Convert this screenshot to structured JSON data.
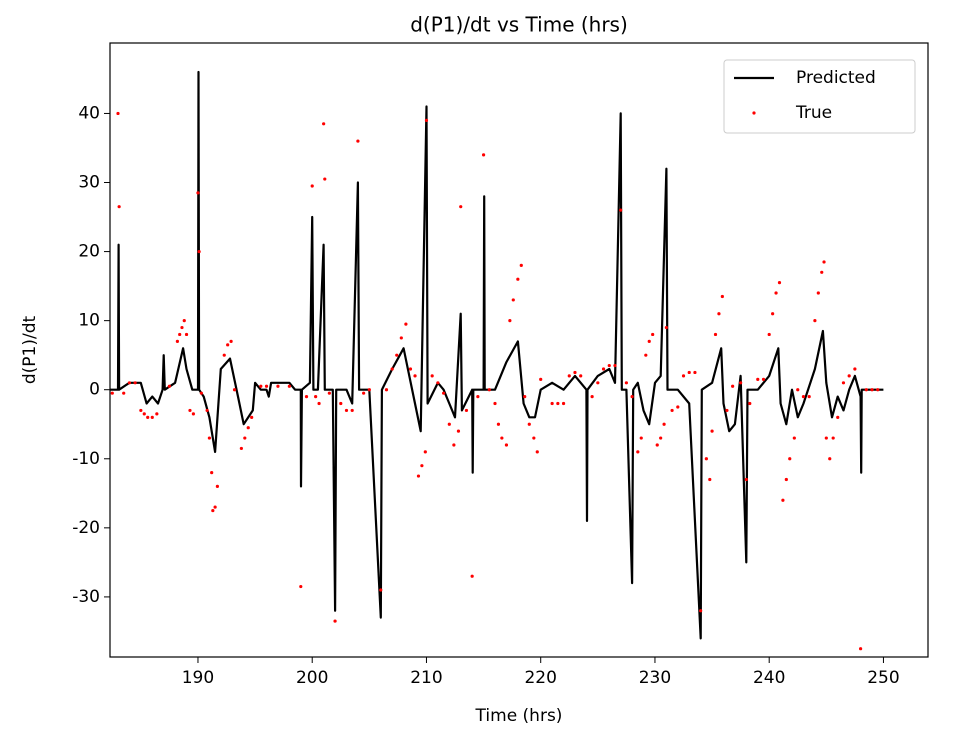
{
  "chart_data": {
    "type": "line_scatter",
    "title": "d(P1)/dt vs Time (hrs)",
    "xlabel": "Time (hrs)",
    "ylabel": "d(P1)/dt",
    "xlim": [
      182.3,
      253.9
    ],
    "ylim": [
      -38.7,
      50.2
    ],
    "xticks": [
      190,
      200,
      210,
      220,
      230,
      240,
      250
    ],
    "yticks": [
      -30,
      -20,
      -10,
      0,
      10,
      20,
      30,
      40
    ],
    "legend": "upper right",
    "series": [
      {
        "name": "Predicted",
        "kind": "line",
        "color": "#000000",
        "x": [
          182.3,
          183,
          183.05,
          183.1,
          184,
          185,
          185.5,
          186,
          186.5,
          186.9,
          187,
          187.1,
          188,
          188.7,
          189,
          189.5,
          190,
          190.05,
          190.1,
          190.5,
          191,
          191.5,
          192,
          192.8,
          193.5,
          194,
          194.8,
          195,
          195.5,
          196,
          196.2,
          196.4,
          197,
          198,
          198.5,
          199,
          199.02,
          199.1,
          199.8,
          200,
          200.1,
          200.5,
          201,
          201.1,
          201.8,
          202,
          202.1,
          203,
          203.5,
          204,
          204.1,
          204.5,
          205,
          206,
          206.1,
          207,
          208,
          209,
          209.5,
          210,
          210.1,
          211,
          211.5,
          212,
          212.5,
          213,
          213.1,
          214,
          214.05,
          214.1,
          215,
          215.05,
          215.1,
          216,
          217,
          218,
          218.5,
          219,
          219.5,
          220,
          221,
          222,
          223,
          224,
          224.05,
          224.1,
          225,
          226,
          226.5,
          227,
          227.1,
          227.5,
          228,
          228.1,
          228.5,
          229,
          229.5,
          230,
          230.5,
          231,
          231.1,
          232,
          233,
          234,
          234.1,
          235,
          235.8,
          236,
          236.5,
          237,
          237.5,
          238,
          238.1,
          239,
          240,
          240.8,
          241,
          241.5,
          242,
          242.5,
          243,
          244,
          244.7,
          245,
          245.5,
          246,
          246.5,
          247,
          247.5,
          248,
          248.05,
          248.1,
          250
        ],
        "values": [
          0,
          0,
          21,
          0,
          1,
          1,
          -2,
          -1,
          -2,
          0,
          5,
          0,
          1,
          6,
          3,
          0,
          0,
          46,
          0,
          -1,
          -4,
          -9,
          3,
          4.5,
          -1,
          -5,
          -3,
          1,
          0,
          0,
          -1,
          1,
          1,
          1,
          0,
          0,
          -14,
          0,
          1,
          25,
          0,
          0,
          21,
          0,
          0,
          -32,
          0,
          0,
          -2,
          30,
          0,
          0,
          0,
          -33,
          0,
          3,
          6,
          -2,
          -6,
          41,
          -2,
          1,
          0,
          -2,
          -4,
          11,
          -3,
          0,
          -12,
          0,
          0,
          28,
          0,
          0,
          4,
          7,
          -2,
          -4,
          -4,
          0,
          1,
          0,
          2,
          0,
          -19,
          0,
          2,
          3,
          1,
          40,
          0,
          0,
          -28,
          0,
          1,
          -3,
          -5,
          1,
          2,
          32,
          0,
          0,
          -2,
          -36,
          0,
          1,
          6,
          -2,
          -6,
          -5,
          2,
          -25,
          0,
          0,
          2,
          6,
          -2,
          -5,
          0,
          -4,
          -2,
          3,
          8.5,
          1,
          -4,
          -1,
          -3,
          0,
          2,
          -1,
          -12,
          0,
          0
        ]
      },
      {
        "name": "True",
        "kind": "scatter",
        "color": "#ff0000",
        "x": [
          182.5,
          183,
          183.1,
          183.5,
          184,
          184.5,
          185,
          185.3,
          185.6,
          186,
          186.4,
          187.5,
          188.2,
          188.4,
          188.6,
          188.8,
          189,
          189.3,
          189.6,
          190,
          190.1,
          190.3,
          190.8,
          191,
          191.2,
          191.3,
          191.5,
          191.7,
          192.3,
          192.6,
          192.9,
          193.2,
          193.8,
          194.1,
          194.4,
          194.7,
          195.5,
          196,
          197,
          198,
          199,
          199.5,
          200,
          200.3,
          200.6,
          201,
          201.1,
          201.5,
          202,
          202.5,
          203,
          203.5,
          204,
          204.5,
          205,
          206,
          206.5,
          207,
          207.4,
          207.8,
          208.2,
          208.6,
          209,
          209.3,
          209.6,
          209.9,
          210,
          210.5,
          211,
          211.5,
          212,
          212.4,
          212.8,
          213,
          213.5,
          214,
          214.5,
          215,
          215.5,
          216,
          216.3,
          216.6,
          217,
          217.3,
          217.6,
          218,
          218.3,
          218.6,
          219,
          219.4,
          219.7,
          220,
          221,
          221.5,
          222,
          222.5,
          223,
          223.5,
          224.5,
          225,
          225.5,
          226,
          226.5,
          227,
          227.5,
          228,
          228.5,
          228.8,
          229.2,
          229.5,
          229.8,
          230.2,
          230.5,
          230.8,
          231,
          231.5,
          232,
          232.5,
          233,
          233.5,
          234,
          234.5,
          234.8,
          235,
          235.3,
          235.6,
          235.9,
          236.3,
          236.8,
          237.5,
          238,
          238.3,
          239,
          239.5,
          240,
          240.3,
          240.6,
          240.9,
          241.2,
          241.5,
          241.8,
          242.2,
          242.5,
          243,
          243.5,
          244,
          244.3,
          244.6,
          244.8,
          245,
          245.3,
          245.6,
          246,
          246.5,
          247,
          247.5,
          248,
          248.5,
          249,
          249.5
        ],
        "values": [
          -0.5,
          40,
          26.5,
          -0.5,
          1,
          1,
          -3,
          -3.5,
          -4,
          -4,
          -3.5,
          0.5,
          7,
          8,
          9,
          10,
          8,
          -3,
          -3.5,
          28.5,
          20,
          -0.5,
          -3,
          -7,
          -12,
          -17.5,
          -17,
          -14,
          5,
          6.5,
          7,
          0,
          -8.5,
          -7,
          -5.5,
          -4,
          0.5,
          0.5,
          0.5,
          0.5,
          -28.5,
          -1,
          29.5,
          -1,
          -2,
          38.5,
          30.5,
          -0.5,
          -33.5,
          -2,
          -3,
          -3,
          36,
          -0.5,
          0,
          -29,
          0,
          3,
          5,
          7.5,
          9.5,
          3,
          2,
          -12.5,
          -11,
          -9,
          39,
          2,
          1,
          -0.5,
          -5,
          -8,
          -6,
          26.5,
          -3,
          -27,
          -1,
          34,
          0,
          -2,
          -5,
          -7,
          -8,
          10,
          13,
          16,
          18,
          -1,
          -5,
          -7,
          -9,
          1.5,
          -2,
          -2,
          -2,
          2,
          2.5,
          2,
          -1,
          1,
          3,
          3.5,
          3.5,
          26,
          1,
          -1,
          -9,
          -7,
          5,
          7,
          8,
          -8,
          -7,
          -5,
          9,
          -3,
          -2.5,
          2,
          2.5,
          2.5,
          -32,
          -10,
          -13,
          -6,
          8,
          11,
          13.5,
          -3,
          0.5,
          1,
          -13,
          -2,
          1.5,
          1.5,
          8,
          11,
          14,
          15.5,
          -16,
          -13,
          -10,
          -7,
          0,
          -1,
          -1,
          10,
          14,
          17,
          18.5,
          -7,
          -10,
          -7,
          -4,
          1,
          2,
          3,
          -37.5,
          0,
          0,
          0
        ]
      }
    ]
  }
}
